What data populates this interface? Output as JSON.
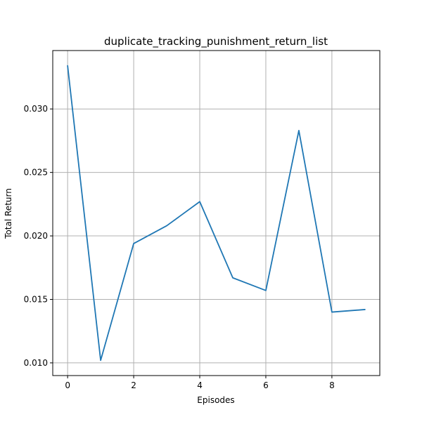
{
  "chart_data": {
    "type": "line",
    "title": "duplicate_tracking_punishment_return_list",
    "xlabel": "Episodes",
    "ylabel": "Total Return",
    "grid": true,
    "xlim": [
      -0.45,
      9.45
    ],
    "ylim": [
      0.009,
      0.0346
    ],
    "xticks": [
      0,
      2,
      4,
      6,
      8
    ],
    "yticks": [
      0.01,
      0.015,
      0.02,
      0.025,
      0.03
    ],
    "xtick_labels": [
      "0",
      "2",
      "4",
      "6",
      "8"
    ],
    "ytick_labels": [
      "0.010",
      "0.015",
      "0.020",
      "0.025",
      "0.030"
    ],
    "series": [
      {
        "color": "#1f77b4",
        "x": [
          0,
          1,
          2,
          3,
          4,
          5,
          6,
          7,
          8,
          9
        ],
        "y": [
          0.0334,
          0.0102,
          0.0194,
          0.0208,
          0.0227,
          0.0167,
          0.0157,
          0.0283,
          0.014,
          0.0142
        ]
      }
    ]
  }
}
